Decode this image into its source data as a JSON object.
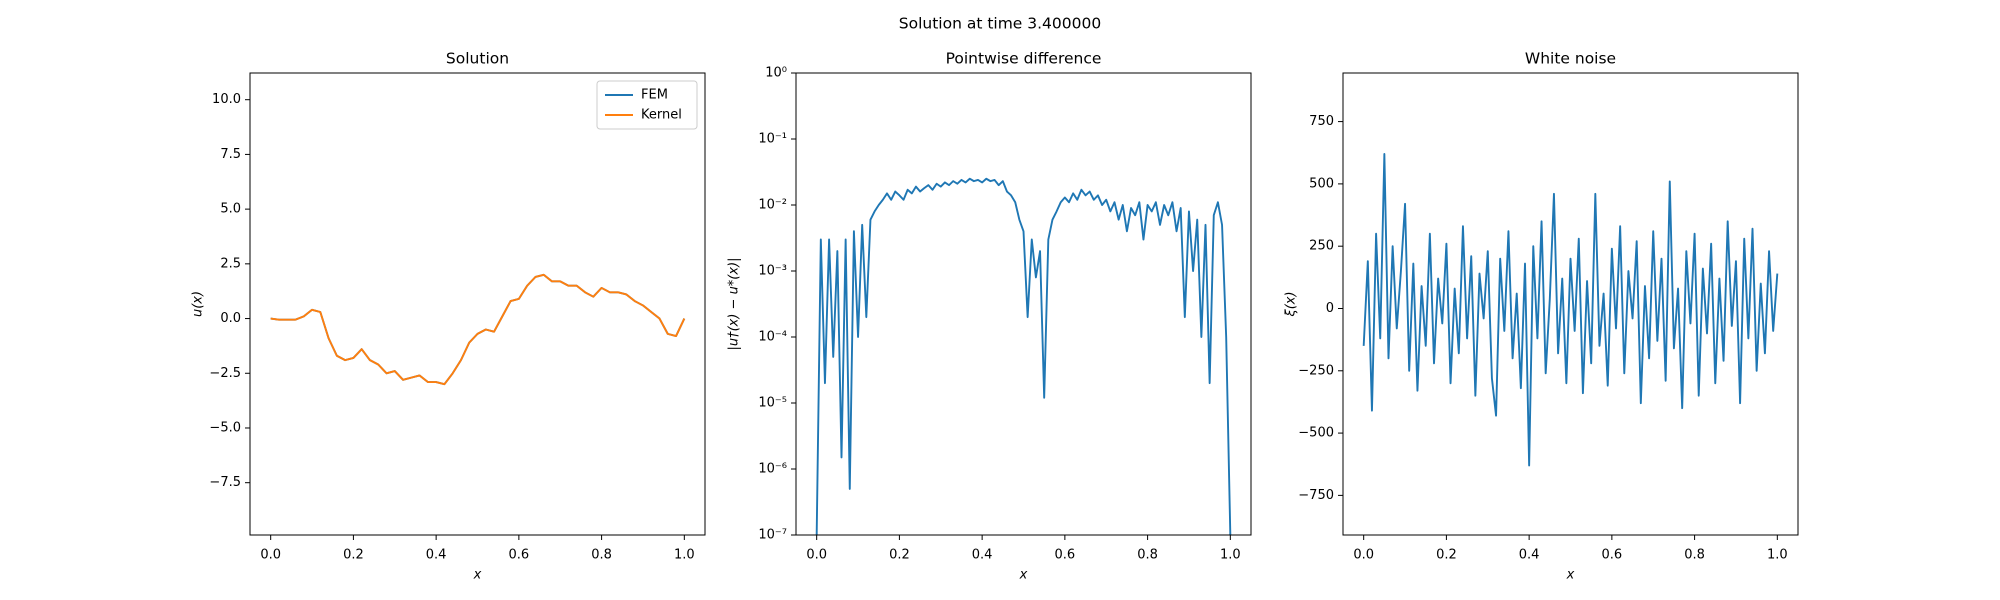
{
  "title": "Solution at time 3.400000",
  "chart_data": [
    {
      "type": "line",
      "title": "Solution",
      "xlabel": "x",
      "ylabel": "u(x)",
      "legend": "upper right",
      "xlim": [
        -0.05,
        1.05
      ],
      "ylim": [
        -9.89,
        11.22
      ],
      "xticks": [
        {
          "value": 0,
          "label": "0.0"
        },
        0.2,
        0.4,
        0.6,
        0.8,
        {
          "value": 1,
          "label": "1.0"
        }
      ],
      "yticks": [
        {
          "value": -7.5,
          "label": "−7.5"
        },
        {
          "value": -5,
          "label": "−5.0"
        },
        {
          "value": -2.5,
          "label": "−2.5"
        },
        {
          "value": 0,
          "label": "0.0"
        },
        2.5,
        {
          "value": 5,
          "label": "5.0"
        },
        7.5,
        {
          "value": 10,
          "label": "10.0"
        }
      ],
      "x": [
        0,
        0.02,
        0.04,
        0.06,
        0.08,
        0.1,
        0.12,
        0.14,
        0.16,
        0.18,
        0.2,
        0.22,
        0.24,
        0.26,
        0.28,
        0.3,
        0.32,
        0.34,
        0.36,
        0.38,
        0.4,
        0.42,
        0.44,
        0.46,
        0.48,
        0.5,
        0.52,
        0.54,
        0.56,
        0.58,
        0.6,
        0.62,
        0.64,
        0.66,
        0.68,
        0.7,
        0.72,
        0.74,
        0.76,
        0.78,
        0.8,
        0.82,
        0.84,
        0.86,
        0.88,
        0.9,
        0.92,
        0.94,
        0.96,
        0.98,
        1
      ],
      "series": [
        {
          "name": "FEM",
          "color": "#1f77b4",
          "values": [
            0,
            -0.05,
            -0.05,
            -0.05,
            0.1,
            0.4,
            0.3,
            -0.9,
            -1.7,
            -1.9,
            -1.8,
            -1.4,
            -1.9,
            -2.1,
            -2.5,
            -2.4,
            -2.8,
            -2.7,
            -2.6,
            -2.9,
            -2.9,
            -3.0,
            -2.5,
            -1.9,
            -1.1,
            -0.7,
            -0.5,
            -0.6,
            0.1,
            0.8,
            0.9,
            1.5,
            1.9,
            2.0,
            1.7,
            1.7,
            1.5,
            1.5,
            1.2,
            1.0,
            1.4,
            1.2,
            1.2,
            1.1,
            0.8,
            0.6,
            0.3,
            0.0,
            -0.7,
            -0.8,
            0.0
          ]
        },
        {
          "name": "Kernel",
          "color": "#ff7f0e",
          "values": [
            0,
            -0.05,
            -0.05,
            -0.05,
            0.1,
            0.4,
            0.3,
            -0.9,
            -1.7,
            -1.9,
            -1.8,
            -1.4,
            -1.9,
            -2.1,
            -2.5,
            -2.4,
            -2.8,
            -2.7,
            -2.6,
            -2.9,
            -2.9,
            -3.0,
            -2.5,
            -1.9,
            -1.1,
            -0.7,
            -0.5,
            -0.6,
            0.1,
            0.8,
            0.9,
            1.5,
            1.9,
            2.0,
            1.7,
            1.7,
            1.5,
            1.5,
            1.2,
            1.0,
            1.4,
            1.2,
            1.2,
            1.1,
            0.8,
            0.6,
            0.3,
            0.0,
            -0.7,
            -0.8,
            0.0
          ]
        }
      ]
    },
    {
      "type": "line",
      "title": "Pointwise difference",
      "xlabel": "x",
      "ylabel": "|u†(x) − u*(x)|",
      "log_y": true,
      "xlim": [
        -0.05,
        1.05
      ],
      "ylim": [
        1e-07,
        1
      ],
      "xticks": [
        {
          "value": 0,
          "label": "0.0"
        },
        0.2,
        0.4,
        0.6,
        0.8,
        {
          "value": 1,
          "label": "1.0"
        }
      ],
      "yticks": [
        {
          "value": 1e-07,
          "label": "10⁻⁷"
        },
        {
          "value": 1e-06,
          "label": "10⁻⁶"
        },
        {
          "value": 1e-05,
          "label": "10⁻⁵"
        },
        {
          "value": 0.0001,
          "label": "10⁻⁴"
        },
        {
          "value": 0.001,
          "label": "10⁻³"
        },
        {
          "value": 0.01,
          "label": "10⁻²"
        },
        {
          "value": 0.1,
          "label": "10⁻¹"
        },
        {
          "value": 1,
          "label": "10⁰"
        }
      ],
      "x": [
        0,
        0.01,
        0.02,
        0.03,
        0.04,
        0.05,
        0.06,
        0.07,
        0.08,
        0.09,
        0.1,
        0.11,
        0.12,
        0.13,
        0.14,
        0.15,
        0.16,
        0.17,
        0.18,
        0.19,
        0.2,
        0.21,
        0.22,
        0.23,
        0.24,
        0.25,
        0.26,
        0.27,
        0.28,
        0.29,
        0.3,
        0.31,
        0.32,
        0.33,
        0.34,
        0.35,
        0.36,
        0.37,
        0.38,
        0.39,
        0.4,
        0.41,
        0.42,
        0.43,
        0.44,
        0.45,
        0.46,
        0.47,
        0.48,
        0.49,
        0.5,
        0.51,
        0.52,
        0.53,
        0.54,
        0.55,
        0.56,
        0.57,
        0.58,
        0.59,
        0.6,
        0.61,
        0.62,
        0.63,
        0.64,
        0.65,
        0.66,
        0.67,
        0.68,
        0.69,
        0.7,
        0.71,
        0.72,
        0.73,
        0.74,
        0.75,
        0.76,
        0.77,
        0.78,
        0.79,
        0.8,
        0.81,
        0.82,
        0.83,
        0.84,
        0.85,
        0.86,
        0.87,
        0.88,
        0.89,
        0.9,
        0.91,
        0.92,
        0.93,
        0.94,
        0.95,
        0.96,
        0.97,
        0.98,
        0.99,
        1
      ],
      "series": [
        {
          "color": "#1f77b4",
          "values": [
            1e-07,
            0.003,
            2e-05,
            0.003,
            5e-05,
            0.002,
            1.5e-06,
            0.003,
            5e-07,
            0.004,
            0.0001,
            0.005,
            0.0002,
            0.006,
            0.008,
            0.01,
            0.012,
            0.015,
            0.012,
            0.016,
            0.014,
            0.012,
            0.017,
            0.015,
            0.019,
            0.016,
            0.018,
            0.02,
            0.017,
            0.021,
            0.019,
            0.022,
            0.02,
            0.023,
            0.021,
            0.024,
            0.022,
            0.025,
            0.023,
            0.024,
            0.022,
            0.025,
            0.023,
            0.024,
            0.02,
            0.023,
            0.016,
            0.014,
            0.011,
            0.006,
            0.004,
            0.0002,
            0.003,
            0.0008,
            0.002,
            1.2e-05,
            0.003,
            0.006,
            0.008,
            0.011,
            0.013,
            0.011,
            0.015,
            0.012,
            0.017,
            0.014,
            0.016,
            0.012,
            0.014,
            0.01,
            0.012,
            0.008,
            0.011,
            0.006,
            0.01,
            0.004,
            0.009,
            0.007,
            0.011,
            0.003,
            0.01,
            0.008,
            0.011,
            0.005,
            0.01,
            0.007,
            0.011,
            0.004,
            0.009,
            0.0002,
            0.008,
            0.001,
            0.006,
            0.0001,
            0.005,
            2e-05,
            0.007,
            0.011,
            0.005,
            0.0001,
            1e-07
          ]
        }
      ]
    },
    {
      "type": "line",
      "title": "White noise",
      "xlabel": "x",
      "ylabel": "ξ(x)",
      "xlim": [
        -0.05,
        1.05
      ],
      "ylim": [
        -909,
        945
      ],
      "xticks": [
        {
          "value": 0,
          "label": "0.0"
        },
        0.2,
        0.4,
        0.6,
        0.8,
        {
          "value": 1,
          "label": "1.0"
        }
      ],
      "yticks": [
        {
          "value": -750,
          "label": "−750"
        },
        {
          "value": -500,
          "label": "−500"
        },
        {
          "value": -250,
          "label": "−250"
        },
        0,
        250,
        500,
        750
      ],
      "x": [
        0,
        0.01,
        0.02,
        0.03,
        0.04,
        0.05,
        0.06,
        0.07,
        0.08,
        0.09,
        0.1,
        0.11,
        0.12,
        0.13,
        0.14,
        0.15,
        0.16,
        0.17,
        0.18,
        0.19,
        0.2,
        0.21,
        0.22,
        0.23,
        0.24,
        0.25,
        0.26,
        0.27,
        0.28,
        0.29,
        0.3,
        0.31,
        0.32,
        0.33,
        0.34,
        0.35,
        0.36,
        0.37,
        0.38,
        0.39,
        0.4,
        0.41,
        0.42,
        0.43,
        0.44,
        0.45,
        0.46,
        0.47,
        0.48,
        0.49,
        0.5,
        0.51,
        0.52,
        0.53,
        0.54,
        0.55,
        0.56,
        0.57,
        0.58,
        0.59,
        0.6,
        0.61,
        0.62,
        0.63,
        0.64,
        0.65,
        0.66,
        0.67,
        0.68,
        0.69,
        0.7,
        0.71,
        0.72,
        0.73,
        0.74,
        0.75,
        0.76,
        0.77,
        0.78,
        0.79,
        0.8,
        0.81,
        0.82,
        0.83,
        0.84,
        0.85,
        0.86,
        0.87,
        0.88,
        0.89,
        0.9,
        0.91,
        0.92,
        0.93,
        0.94,
        0.95,
        0.96,
        0.97,
        0.98,
        0.99,
        1
      ],
      "series": [
        {
          "color": "#1f77b4",
          "values": [
            -150,
            190,
            -410,
            300,
            -120,
            620,
            -200,
            250,
            -80,
            150,
            420,
            -250,
            180,
            -330,
            90,
            -150,
            300,
            -220,
            120,
            -60,
            260,
            -300,
            80,
            -180,
            330,
            -120,
            210,
            -350,
            140,
            -40,
            230,
            -280,
            -430,
            200,
            -90,
            310,
            -200,
            60,
            -320,
            180,
            -630,
            250,
            -120,
            350,
            -260,
            40,
            460,
            -180,
            120,
            -300,
            200,
            -90,
            280,
            -340,
            110,
            -220,
            460,
            -150,
            60,
            -310,
            240,
            -80,
            330,
            -260,
            150,
            -40,
            270,
            -380,
            90,
            -200,
            310,
            -130,
            200,
            -290,
            510,
            -160,
            80,
            -400,
            230,
            -60,
            300,
            -350,
            160,
            -100,
            260,
            -300,
            120,
            -210,
            350,
            -70,
            190,
            -380,
            280,
            -120,
            320,
            -250,
            100,
            -180,
            230,
            -90,
            140
          ]
        }
      ]
    }
  ]
}
